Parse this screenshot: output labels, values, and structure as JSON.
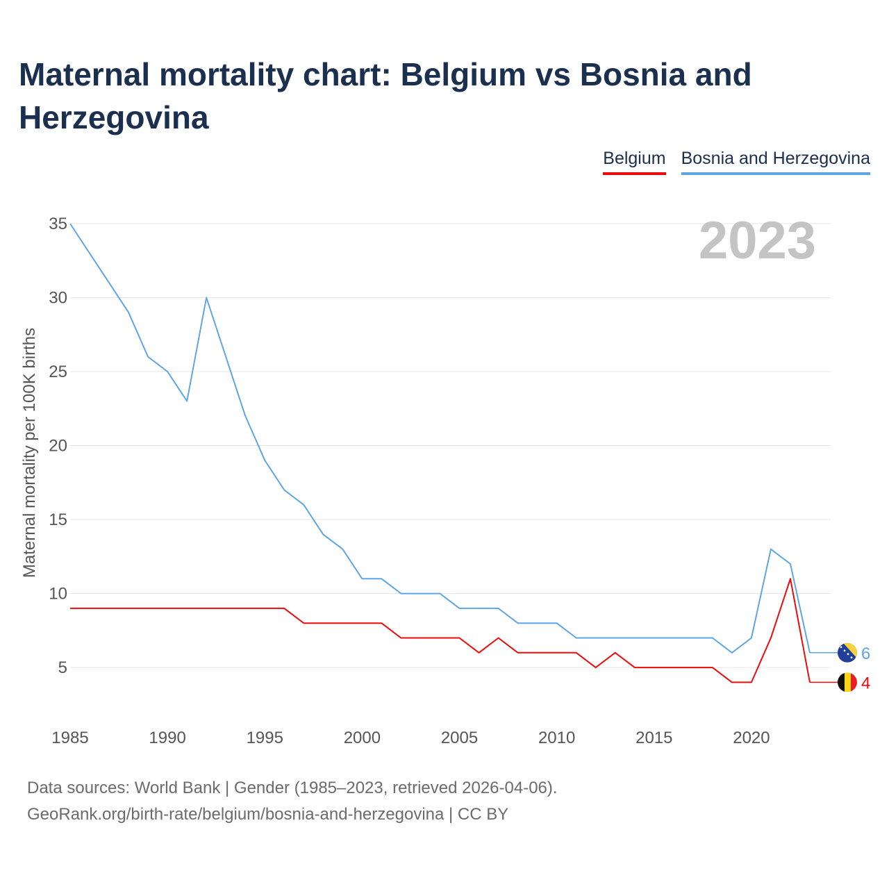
{
  "title": "Maternal mortality chart: Belgium vs Bosnia and Herzegovina",
  "legend": [
    {
      "name": "Belgium",
      "color": "#ee0a0a"
    },
    {
      "name": "Bosnia and Herzegovina",
      "color": "#5ea5e6"
    }
  ],
  "year_watermark": "2023",
  "footer": {
    "line1": "Data sources: World Bank | Gender (1985–2023, retrieved 2026-04-06).",
    "line2": "GeoRank.org/birth-rate/belgium/bosnia-and-herzegovina | CC BY"
  },
  "chart_data": {
    "type": "line",
    "title": "Maternal mortality chart: Belgium vs Bosnia and Herzegovina",
    "xlabel": "",
    "ylabel": "Maternal mortality per 100K births",
    "xlim": [
      1985,
      2023
    ],
    "ylim": [
      2,
      35
    ],
    "xticks": [
      1985,
      1990,
      1995,
      2000,
      2005,
      2010,
      2015,
      2020
    ],
    "yticks": [
      5,
      10,
      15,
      20,
      25,
      30,
      35
    ],
    "grid": true,
    "x": [
      1985,
      1986,
      1987,
      1988,
      1989,
      1990,
      1991,
      1992,
      1993,
      1994,
      1995,
      1996,
      1997,
      1998,
      1999,
      2000,
      2001,
      2002,
      2003,
      2004,
      2005,
      2006,
      2007,
      2008,
      2009,
      2010,
      2011,
      2012,
      2013,
      2014,
      2015,
      2016,
      2017,
      2018,
      2019,
      2020,
      2021,
      2022,
      2023
    ],
    "series": [
      {
        "name": "Belgium",
        "color": "#ee0a0a",
        "end_label": "4",
        "values": [
          9,
          9,
          9,
          9,
          9,
          9,
          9,
          9,
          9,
          9,
          9,
          9,
          8,
          8,
          8,
          8,
          8,
          7,
          7,
          7,
          7,
          6,
          7,
          6,
          6,
          6,
          6,
          5,
          6,
          5,
          5,
          5,
          5,
          5,
          4,
          4,
          7,
          11,
          4
        ]
      },
      {
        "name": "Bosnia and Herzegovina",
        "color": "#5ea5e6",
        "end_label": "6",
        "values": [
          35,
          33,
          31,
          29,
          26,
          25,
          23,
          30,
          26,
          22,
          19,
          17,
          16,
          14,
          13,
          11,
          11,
          10,
          10,
          10,
          9,
          9,
          9,
          8,
          8,
          8,
          7,
          7,
          7,
          7,
          7,
          7,
          7,
          7,
          6,
          7,
          13,
          12,
          6
        ]
      }
    ]
  }
}
